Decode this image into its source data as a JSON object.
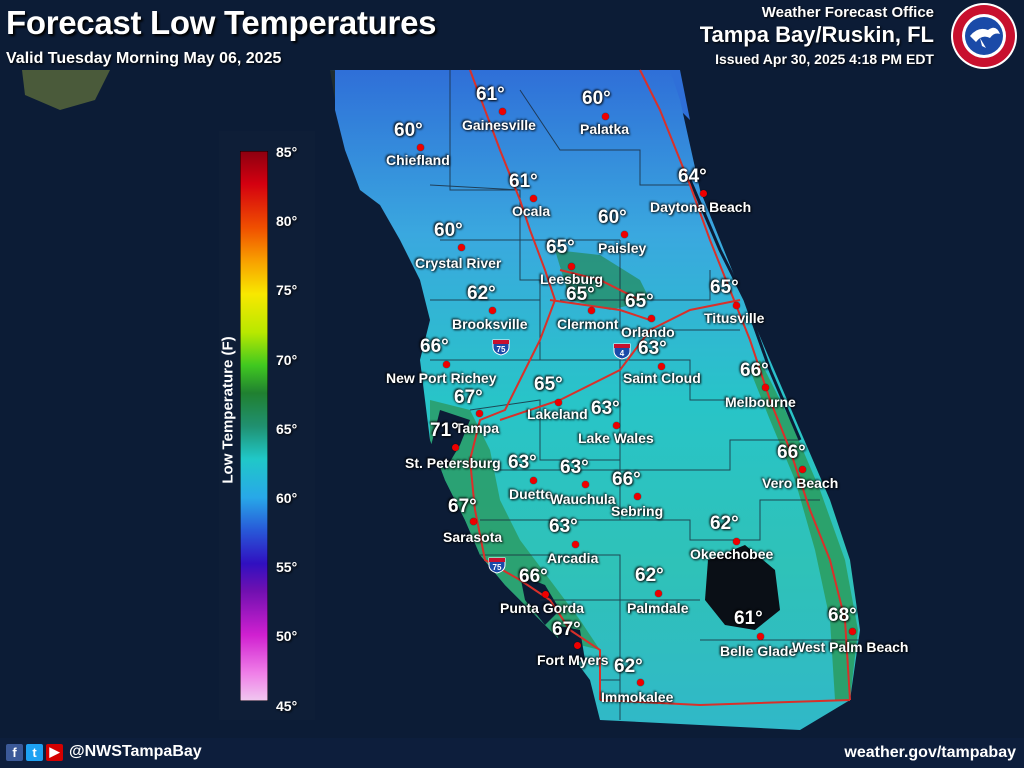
{
  "header": {
    "title": "Forecast Low Temperatures",
    "valid": "Valid Tuesday Morning May 06, 2025",
    "office": "Weather Forecast Office",
    "office_name": "Tampa Bay/Ruskin, FL",
    "issued": "Issued Apr 30, 2025 4:18 PM EDT"
  },
  "logo": {
    "name": "nws-logo",
    "text": "NATIONAL WEATHER SERVICE"
  },
  "legend": {
    "title": "Low Temperature (F)",
    "ticks": [
      "85°",
      "80°",
      "75°",
      "70°",
      "65°",
      "60°",
      "55°",
      "50°",
      "45°"
    ],
    "min": 45,
    "max": 85
  },
  "highways": [
    {
      "label": "75",
      "icon": "interstate-shield-icon"
    },
    {
      "label": "4",
      "icon": "interstate-shield-icon"
    },
    {
      "label": "75",
      "icon": "interstate-shield-icon"
    }
  ],
  "cities": [
    {
      "name": "Gainesville",
      "temp": "61°"
    },
    {
      "name": "Palatka",
      "temp": "60°"
    },
    {
      "name": "Chiefland",
      "temp": "60°"
    },
    {
      "name": "Ocala",
      "temp": "61°"
    },
    {
      "name": "Daytona Beach",
      "temp": "64°"
    },
    {
      "name": "Paisley",
      "temp": "60°"
    },
    {
      "name": "Crystal River",
      "temp": "60°"
    },
    {
      "name": "Leesburg",
      "temp": "65°"
    },
    {
      "name": "Brooksville",
      "temp": "62°"
    },
    {
      "name": "Clermont",
      "temp": "65°"
    },
    {
      "name": "Orlando",
      "temp": "65°"
    },
    {
      "name": "Titusville",
      "temp": "65°"
    },
    {
      "name": "New Port Richey",
      "temp": "66°"
    },
    {
      "name": "Saint Cloud",
      "temp": "63°"
    },
    {
      "name": "Melbourne",
      "temp": "66°"
    },
    {
      "name": "Tampa",
      "temp": "67°"
    },
    {
      "name": "Lakeland",
      "temp": "65°"
    },
    {
      "name": "Lake Wales",
      "temp": "63°"
    },
    {
      "name": "St. Petersburg",
      "temp": "71°"
    },
    {
      "name": "Vero Beach",
      "temp": "66°"
    },
    {
      "name": "Duette",
      "temp": "63°"
    },
    {
      "name": "Wauchula",
      "temp": "63°"
    },
    {
      "name": "Sebring",
      "temp": "66°"
    },
    {
      "name": "Sarasota",
      "temp": "67°"
    },
    {
      "name": "Okeechobee",
      "temp": "62°"
    },
    {
      "name": "Arcadia",
      "temp": "63°"
    },
    {
      "name": "Punta Gorda",
      "temp": "66°"
    },
    {
      "name": "Palmdale",
      "temp": "62°"
    },
    {
      "name": "Belle Glade",
      "temp": "61°"
    },
    {
      "name": "West Palm Beach",
      "temp": "68°"
    },
    {
      "name": "Fort Myers",
      "temp": "67°"
    },
    {
      "name": "Immokalee",
      "temp": "62°"
    }
  ],
  "footer": {
    "social_icons": [
      "facebook-icon",
      "twitter-icon",
      "youtube-icon"
    ],
    "handle": "@NWSTampaBay",
    "url": "weather.gov/tampabay"
  },
  "colors": {
    "ocean": "#0b1a33",
    "gulf_land": "#1d3a1c",
    "accent_red": "#dd0000",
    "county_lines": "#1a2a3a",
    "roads": "#d9302a"
  }
}
